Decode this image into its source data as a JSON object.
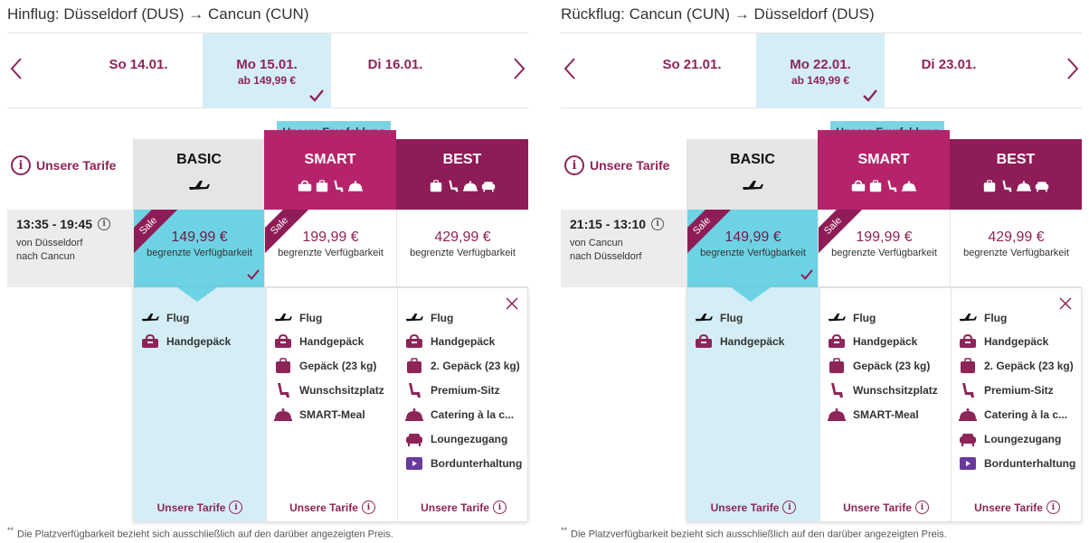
{
  "outbound": {
    "title": "Hinflug: Düsseldorf (DUS) → Cancun (CUN)",
    "dates": [
      {
        "label": "So 14.01.",
        "price": ""
      },
      {
        "label": "Mo 15.01.",
        "price": "ab 149,99 €"
      },
      {
        "label": "Di 16.01.",
        "price": ""
      }
    ],
    "flight": {
      "times": "13:35 - 19:45",
      "route_line1": "von Düsseldorf",
      "route_line2": "nach Cancun"
    }
  },
  "inbound": {
    "title": "Rückflug: Cancun (CUN) → Düsseldorf (DUS)",
    "dates": [
      {
        "label": "So 21.01.",
        "price": ""
      },
      {
        "label": "Mo 22.01.",
        "price": "ab 149,99 €"
      },
      {
        "label": "Di 23.01.",
        "price": ""
      }
    ],
    "flight": {
      "times": "21:15 - 13:10",
      "route_line1": "von Cancun",
      "route_line2": "nach Düsseldorf"
    }
  },
  "common": {
    "tarife_label": "Unsere Tarife",
    "recommend_badge": "Unsere Empfehlung",
    "fares": {
      "basic": {
        "name": "BASIC",
        "price": "149,99 €",
        "avail": "begrenzte Verfügbarkeit",
        "sale": "Sale"
      },
      "smart": {
        "name": "SMART",
        "price": "199,99 €",
        "avail": "begrenzte Verfügbarkeit",
        "sale": "Sale"
      },
      "best": {
        "name": "BEST",
        "price": "429,99 €",
        "avail": "begrenzte Verfügbarkeit"
      }
    },
    "features": {
      "basic": [
        "Flug",
        "Handgepäck"
      ],
      "smart": [
        "Flug",
        "Handgepäck",
        "Gepäck (23 kg)",
        "Wunschsitzplatz",
        "SMART-Meal"
      ],
      "best": [
        "Flug",
        "Handgepäck",
        "2. Gepäck (23 kg)",
        "Premium-Sitz",
        "Catering à la c...",
        "Loungezugang",
        "Bordunterhaltung"
      ]
    },
    "col_footer": "Unsere Tarife",
    "footnote_mark": "**",
    "footnote": "Die Platzverfügbarkeit bezieht sich ausschließlich auf den darüber angezeigten Preis.",
    "colors": {
      "accent": "#8e2458",
      "smart": "#b5246a",
      "best": "#8e1c56",
      "cyan": "#6dd3e4",
      "light_cyan": "#d5eef5"
    },
    "icons": {
      "info": "info-icon",
      "plane": "plane-icon",
      "bag": "handbag-icon",
      "suitcase": "suitcase-icon",
      "seat": "seat-icon",
      "meal": "meal-icon",
      "lounge": "lounge-icon",
      "tv": "tv-icon",
      "check": "check-icon",
      "close": "close-icon"
    }
  }
}
